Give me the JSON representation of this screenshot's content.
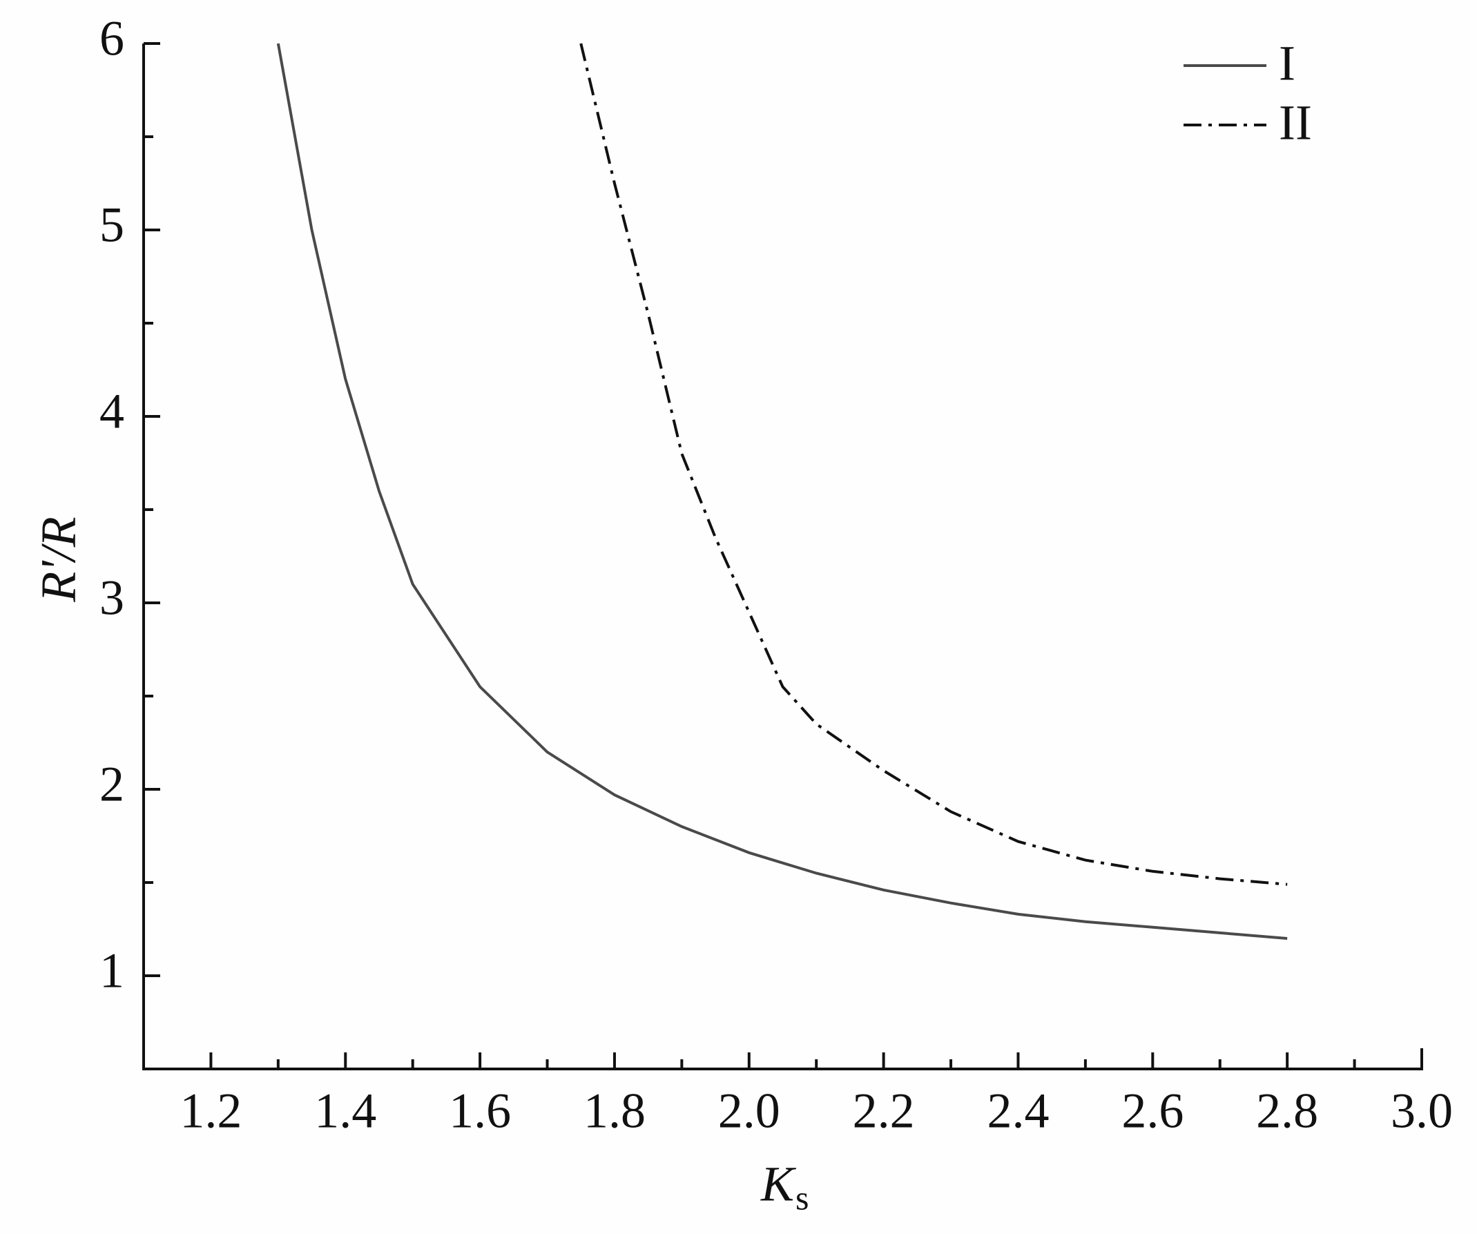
{
  "chart_data": {
    "type": "line",
    "x_label": "K",
    "x_label_subscript": "s",
    "y_label": "R'/R",
    "xlim": [
      1.1,
      3.0
    ],
    "ylim": [
      0.5,
      6
    ],
    "xticks": [
      1.2,
      1.4,
      1.6,
      1.8,
      {
        "value": 2,
        "label": "2.0"
      },
      2.2,
      2.4,
      2.6,
      2.8,
      {
        "value": 3,
        "label": "3.0"
      }
    ],
    "yticks": [
      1,
      2,
      3,
      4,
      5,
      6
    ],
    "xticks_minor": [
      1.3,
      1.5,
      1.7,
      1.9,
      2.1,
      2.3,
      2.5,
      2.7,
      2.9
    ],
    "yticks_minor": [
      1.5,
      2.5,
      3.5,
      4.5,
      5.5
    ],
    "legend": "upper right",
    "series": [
      {
        "name": "I",
        "color": "#4a4a4a",
        "dash": "solid",
        "x": [
          1.3,
          1.35,
          1.4,
          1.45,
          1.5,
          1.6,
          1.7,
          1.8,
          1.9,
          2.0,
          2.1,
          2.2,
          2.3,
          2.4,
          2.5,
          2.6,
          2.7,
          2.8
        ],
        "values": [
          6,
          5.0,
          4.2,
          3.6,
          3.1,
          2.55,
          2.2,
          1.97,
          1.8,
          1.66,
          1.55,
          1.46,
          1.39,
          1.33,
          1.29,
          1.26,
          1.23,
          1.2
        ]
      },
      {
        "name": "II",
        "color": "#111111",
        "dash": "dashdot",
        "x": [
          1.75,
          1.8,
          1.85,
          1.9,
          1.95,
          2.0,
          2.05,
          2.1,
          2.2,
          2.3,
          2.4,
          2.5,
          2.6,
          2.7,
          2.8
        ],
        "values": [
          6,
          5.25,
          4.55,
          3.8,
          3.35,
          2.95,
          2.55,
          2.35,
          2.1,
          1.88,
          1.72,
          1.62,
          1.56,
          1.52,
          1.49
        ]
      }
    ]
  }
}
